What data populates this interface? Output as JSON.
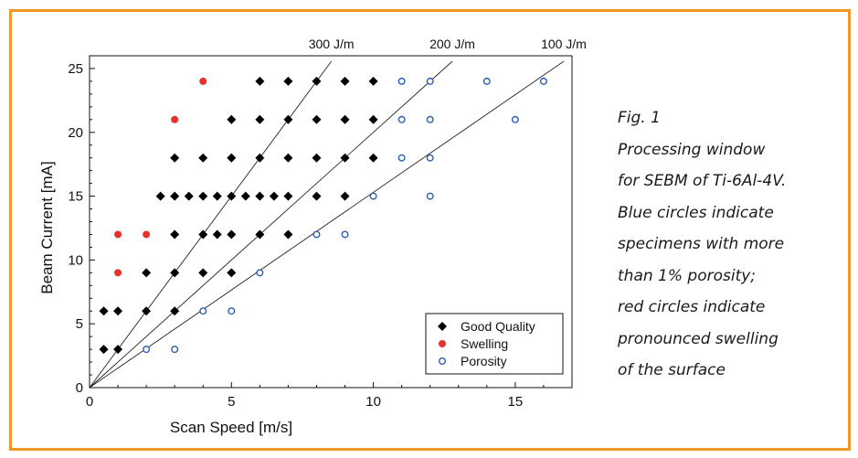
{
  "caption": {
    "lines": [
      "Fig. 1",
      "Processing window",
      "for SEBM of Ti-6Al-4V.",
      "Blue circles indicate",
      "specimens with more",
      "than 1% porosity;",
      "red circles indicate",
      "pronounced swelling",
      "of the surface"
    ]
  },
  "colors": {
    "frame": "#f0962a",
    "good_quality": "#000000",
    "swelling": "#e8302c",
    "porosity": "#2a5fb0"
  },
  "chart_data": {
    "type": "scatter",
    "xlabel": "Scan Speed [m/s]",
    "ylabel": "Beam Current [mA]",
    "xlim": [
      0,
      17
    ],
    "ylim": [
      0,
      26
    ],
    "xticks": [
      0,
      5,
      10,
      15
    ],
    "yticks": [
      0,
      5,
      10,
      15,
      20,
      25
    ],
    "grid": false,
    "legend_position": "bottom-right",
    "reference_lines": [
      {
        "label": "300 J/m",
        "slope": 3
      },
      {
        "label": "200 J/m",
        "slope": 2
      },
      {
        "label": "100 J/m",
        "slope": 1
      }
    ],
    "series": [
      {
        "name": "Good Quality",
        "marker": "diamond",
        "points": [
          [
            0.5,
            3
          ],
          [
            1,
            3
          ],
          [
            0.5,
            6
          ],
          [
            1,
            6
          ],
          [
            2,
            6
          ],
          [
            3,
            6
          ],
          [
            2,
            9
          ],
          [
            3,
            9
          ],
          [
            4,
            9
          ],
          [
            5,
            9
          ],
          [
            3,
            12
          ],
          [
            4,
            12
          ],
          [
            4.5,
            12
          ],
          [
            5,
            12
          ],
          [
            6,
            12
          ],
          [
            7,
            12
          ],
          [
            2.5,
            15
          ],
          [
            3,
            15
          ],
          [
            3.5,
            15
          ],
          [
            4,
            15
          ],
          [
            4.5,
            15
          ],
          [
            5,
            15
          ],
          [
            5.5,
            15
          ],
          [
            6,
            15
          ],
          [
            6.5,
            15
          ],
          [
            7,
            15
          ],
          [
            8,
            15
          ],
          [
            9,
            15
          ],
          [
            3,
            18
          ],
          [
            4,
            18
          ],
          [
            5,
            18
          ],
          [
            6,
            18
          ],
          [
            7,
            18
          ],
          [
            8,
            18
          ],
          [
            9,
            18
          ],
          [
            10,
            18
          ],
          [
            5,
            21
          ],
          [
            6,
            21
          ],
          [
            7,
            21
          ],
          [
            8,
            21
          ],
          [
            9,
            21
          ],
          [
            10,
            21
          ],
          [
            6,
            24
          ],
          [
            7,
            24
          ],
          [
            8,
            24
          ],
          [
            9,
            24
          ],
          [
            10,
            24
          ]
        ]
      },
      {
        "name": "Swelling",
        "marker": "filled-circle",
        "points": [
          [
            1,
            9
          ],
          [
            1,
            12
          ],
          [
            2,
            12
          ],
          [
            3,
            21
          ],
          [
            4,
            24
          ]
        ]
      },
      {
        "name": "Porosity",
        "marker": "open-circle",
        "points": [
          [
            2,
            3
          ],
          [
            3,
            3
          ],
          [
            4,
            6
          ],
          [
            5,
            6
          ],
          [
            6,
            9
          ],
          [
            8,
            12
          ],
          [
            9,
            12
          ],
          [
            10,
            15
          ],
          [
            12,
            15
          ],
          [
            11,
            18
          ],
          [
            12,
            18
          ],
          [
            11,
            21
          ],
          [
            12,
            21
          ],
          [
            15,
            21
          ],
          [
            11,
            24
          ],
          [
            12,
            24
          ],
          [
            14,
            24
          ],
          [
            16,
            24
          ]
        ]
      }
    ]
  }
}
